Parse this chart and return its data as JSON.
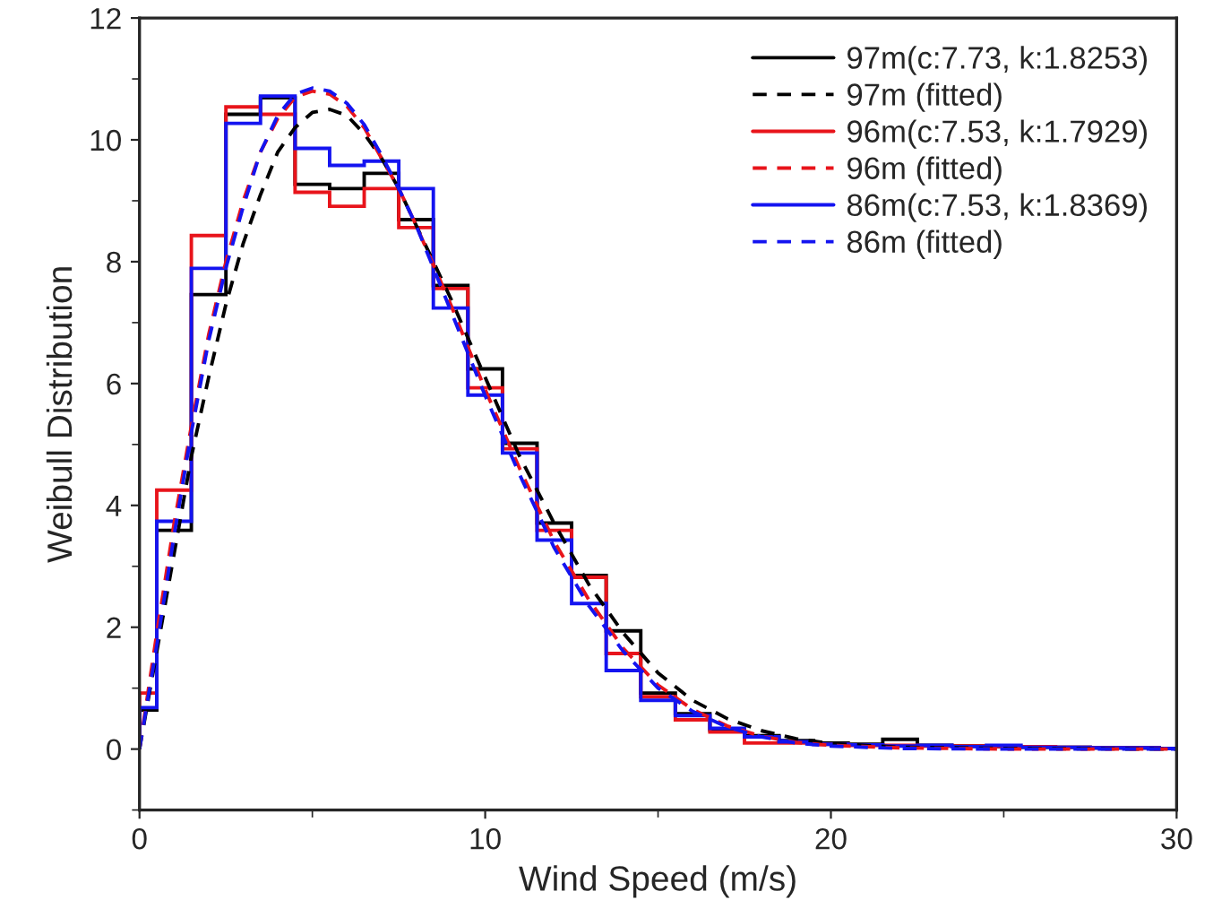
{
  "chart_data": {
    "type": "histogram",
    "xlabel": "Wind Speed (m/s)",
    "ylabel": "Weibull Distribution",
    "xlim": [
      0,
      30
    ],
    "ylim": [
      -1,
      12
    ],
    "xticks": [
      0,
      10,
      20,
      30
    ],
    "yticks": [
      0,
      2,
      4,
      6,
      8,
      10,
      12
    ],
    "grid": false,
    "legend": "top right",
    "bins": [
      0,
      0.5,
      1.5,
      2.5,
      3.5,
      4.5,
      5.5,
      6.5,
      7.5,
      8.5,
      9.5,
      10.5,
      11.5,
      12.5,
      13.5,
      14.5,
      15.5,
      16.5,
      17.5,
      18.5,
      19.5,
      20.5,
      21.5,
      22.5,
      23.5,
      24.5,
      25.5,
      26.5,
      27.5,
      28.5,
      29.5,
      30
    ],
    "series": [
      {
        "type": "histogram",
        "name": "97m(c:7.73, k:1.8253)",
        "color": "#000000",
        "line_style": "solid",
        "values": [
          0.64,
          3.59,
          7.46,
          10.42,
          10.69,
          9.27,
          9.2,
          9.45,
          8.69,
          7.61,
          6.24,
          5.02,
          3.71,
          2.85,
          1.94,
          0.92,
          0.58,
          0.31,
          0.22,
          0.14,
          0.1,
          0.08,
          0.16,
          0.06,
          0.05,
          0.04,
          0.03,
          0.03,
          0.02,
          0.02,
          0.01
        ]
      },
      {
        "type": "line",
        "name": "97m (fitted)",
        "color": "#000000",
        "line_style": "dashed",
        "x": [
          0,
          0.5,
          1,
          1.5,
          2,
          2.5,
          3,
          3.5,
          4,
          4.5,
          5,
          5.5,
          6,
          6.5,
          7,
          7.5,
          8,
          9,
          10,
          11,
          12,
          13,
          14,
          15,
          16,
          17,
          18,
          19,
          20,
          22,
          25,
          30
        ],
        "values": [
          0,
          1.6,
          3.2,
          4.8,
          6.1,
          7.3,
          8.3,
          9.1,
          9.8,
          10.2,
          10.45,
          10.5,
          10.4,
          10.1,
          9.7,
          9.2,
          8.6,
          7.4,
          6.1,
          4.8,
          3.7,
          2.7,
          1.9,
          1.25,
          0.8,
          0.5,
          0.3,
          0.17,
          0.09,
          0.03,
          0.01,
          0
        ]
      },
      {
        "type": "histogram",
        "name": "96m(c:7.53, k:1.7929)",
        "color": "#e8141b",
        "line_style": "solid",
        "values": [
          0.92,
          4.25,
          8.43,
          10.54,
          10.42,
          9.14,
          8.91,
          9.2,
          8.56,
          7.56,
          5.93,
          4.93,
          3.59,
          2.82,
          1.57,
          0.86,
          0.48,
          0.28,
          0.1,
          0.1,
          0.08,
          0.06,
          0.06,
          0.05,
          0.05,
          0.04,
          0.04,
          0.03,
          0.02,
          0.02,
          0.01
        ]
      },
      {
        "type": "line",
        "name": "96m (fitted)",
        "color": "#e8141b",
        "line_style": "dashed",
        "x": [
          0,
          0.5,
          1,
          1.5,
          2,
          2.5,
          3,
          3.5,
          4,
          4.5,
          5,
          5.5,
          6,
          6.5,
          7,
          7.5,
          8,
          9,
          10,
          11,
          12,
          13,
          14,
          15,
          16,
          17,
          18,
          19,
          20,
          22,
          25,
          30
        ],
        "values": [
          0,
          1.9,
          3.7,
          5.3,
          6.8,
          8.0,
          9.0,
          9.8,
          10.35,
          10.7,
          10.8,
          10.75,
          10.55,
          10.2,
          9.7,
          9.2,
          8.6,
          7.3,
          5.9,
          4.6,
          3.4,
          2.45,
          1.65,
          1.05,
          0.65,
          0.38,
          0.21,
          0.11,
          0.06,
          0.02,
          0,
          0
        ]
      },
      {
        "type": "histogram",
        "name": "86m(c:7.53, k:1.8369)",
        "color": "#1414f0",
        "line_style": "solid",
        "values": [
          0.68,
          3.74,
          7.89,
          10.27,
          10.72,
          9.86,
          9.58,
          9.65,
          9.2,
          7.24,
          5.81,
          4.86,
          3.43,
          2.39,
          1.29,
          0.8,
          0.55,
          0.34,
          0.2,
          0.12,
          0.08,
          0.07,
          0.05,
          0.06,
          0.04,
          0.06,
          0.03,
          0.03,
          0.02,
          0.02,
          0.01
        ]
      },
      {
        "type": "line",
        "name": "86m (fitted)",
        "color": "#1414f0",
        "line_style": "dashed",
        "x": [
          0,
          0.5,
          1,
          1.5,
          2,
          2.5,
          3,
          3.5,
          4,
          4.5,
          5,
          5.5,
          6,
          6.5,
          7,
          7.5,
          8,
          9,
          10,
          11,
          12,
          13,
          14,
          15,
          16,
          17,
          18,
          19,
          20,
          22,
          25,
          30
        ],
        "values": [
          0,
          1.7,
          3.5,
          5.2,
          6.7,
          7.9,
          8.9,
          9.8,
          10.4,
          10.75,
          10.85,
          10.8,
          10.6,
          10.25,
          9.75,
          9.2,
          8.6,
          7.2,
          5.8,
          4.5,
          3.3,
          2.35,
          1.6,
          1.0,
          0.62,
          0.36,
          0.2,
          0.1,
          0.05,
          0.01,
          0,
          0
        ]
      }
    ]
  }
}
